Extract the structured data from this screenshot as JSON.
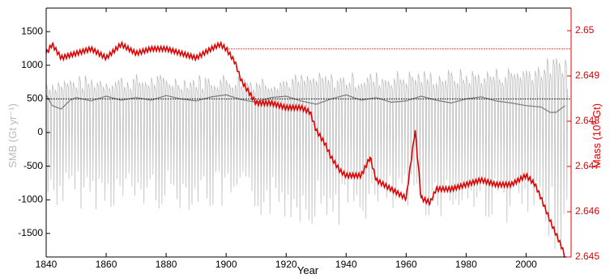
{
  "chart_data": {
    "type": "line",
    "xlabel": "Year",
    "ylabel_left": "SMB (Gt yr⁻¹)",
    "ylabel_right_base": "Mass (10",
    "ylabel_right_sup": "6",
    "ylabel_right_unit": " Gt)",
    "xlim": [
      1840,
      2015
    ],
    "ylim_left": [
      -1850,
      1850
    ],
    "ylim_right": [
      2.645,
      2.6505
    ],
    "x_ticks": [
      1840,
      1860,
      1880,
      1900,
      1920,
      1940,
      1960,
      1980,
      2000
    ],
    "y_left_ticks": [
      -1500,
      -1000,
      -500,
      0,
      500,
      1000,
      1500
    ],
    "y_right_ticks": [
      2.645,
      2.646,
      2.647,
      2.648,
      2.649,
      2.65
    ],
    "y_right_tick_labels": [
      "2.645",
      "2.646",
      "2.647",
      "2.648",
      "2.649",
      "2.65"
    ],
    "grid": false,
    "colors": {
      "smb_monthly": "#bdbdbd",
      "smb_smoothed": "#7a7a7a",
      "mass": "#e00000",
      "left_axis_label": "#b8b8b8",
      "right_axis": "#e00000"
    },
    "reference_lines": [
      {
        "axis": "left",
        "y": 500,
        "color": "#000000",
        "style": "dotted"
      },
      {
        "axis": "right",
        "y": 2.6496,
        "x_start": 1900,
        "color": "#e00000",
        "style": "dotted"
      }
    ],
    "series": [
      {
        "axis": "left",
        "style": "seasonal cycle between summer minimum and winter maximum (Gt/yr)",
        "x": [
          1840,
          1850,
          1860,
          1870,
          1880,
          1890,
          1900,
          1910,
          1920,
          1930,
          1940,
          1950,
          1960,
          1970,
          1980,
          1990,
          2000,
          2005,
          2010,
          2013
        ],
        "y_upper": [
          720,
          740,
          760,
          760,
          760,
          760,
          780,
          750,
          760,
          780,
          780,
          800,
          820,
          820,
          830,
          850,
          900,
          950,
          1000,
          1050
        ],
        "y_lower": [
          -1000,
          -1000,
          -1000,
          -1000,
          -1000,
          -1000,
          -1050,
          -1100,
          -1150,
          -1200,
          -1200,
          -1150,
          -1100,
          -1100,
          -1100,
          -1150,
          -1250,
          -1350,
          -1550,
          -1700
        ]
      },
      {
        "axis": "left",
        "style": "smoothed SMB (Gt/yr)",
        "x": [
          1840,
          1842,
          1845,
          1848,
          1850,
          1855,
          1860,
          1865,
          1870,
          1875,
          1880,
          1885,
          1890,
          1895,
          1900,
          1905,
          1910,
          1915,
          1920,
          1925,
          1930,
          1935,
          1940,
          1945,
          1950,
          1955,
          1960,
          1965,
          1970,
          1975,
          1980,
          1985,
          1990,
          1995,
          2000,
          2005,
          2008,
          2010,
          2013
        ],
        "y": [
          560,
          400,
          350,
          480,
          520,
          470,
          540,
          480,
          520,
          480,
          550,
          500,
          470,
          530,
          560,
          490,
          450,
          520,
          540,
          470,
          420,
          500,
          560,
          480,
          520,
          450,
          470,
          540,
          480,
          440,
          500,
          530,
          470,
          440,
          400,
          380,
          300,
          300,
          400
        ]
      },
      {
        "axis": "right",
        "style": "cumulative mass (10^6 Gt)",
        "x": [
          1840,
          1842,
          1845,
          1850,
          1855,
          1860,
          1865,
          1870,
          1875,
          1880,
          1885,
          1890,
          1895,
          1898,
          1900,
          1903,
          1905,
          1908,
          1910,
          1915,
          1920,
          1925,
          1928,
          1930,
          1933,
          1935,
          1938,
          1940,
          1945,
          1948,
          1950,
          1955,
          1960,
          1963,
          1965,
          1968,
          1970,
          1975,
          1980,
          1985,
          1990,
          1995,
          2000,
          2003,
          2005,
          2008,
          2010,
          2012,
          2013
        ],
        "y": [
          2.6495,
          2.6497,
          2.6494,
          2.6495,
          2.6496,
          2.6494,
          2.6497,
          2.6495,
          2.6496,
          2.6496,
          2.6495,
          2.6494,
          2.6496,
          2.6497,
          2.6496,
          2.6493,
          2.6489,
          2.6486,
          2.6484,
          2.6484,
          2.6483,
          2.6483,
          2.6482,
          2.6478,
          2.6475,
          2.6472,
          2.6469,
          2.6468,
          2.6468,
          2.6472,
          2.6467,
          2.6465,
          2.6463,
          2.6478,
          2.6463,
          2.6462,
          2.6465,
          2.6465,
          2.6466,
          2.6467,
          2.6466,
          2.6466,
          2.6468,
          2.6466,
          2.6463,
          2.6458,
          2.6455,
          2.6452,
          2.645
        ]
      }
    ]
  }
}
